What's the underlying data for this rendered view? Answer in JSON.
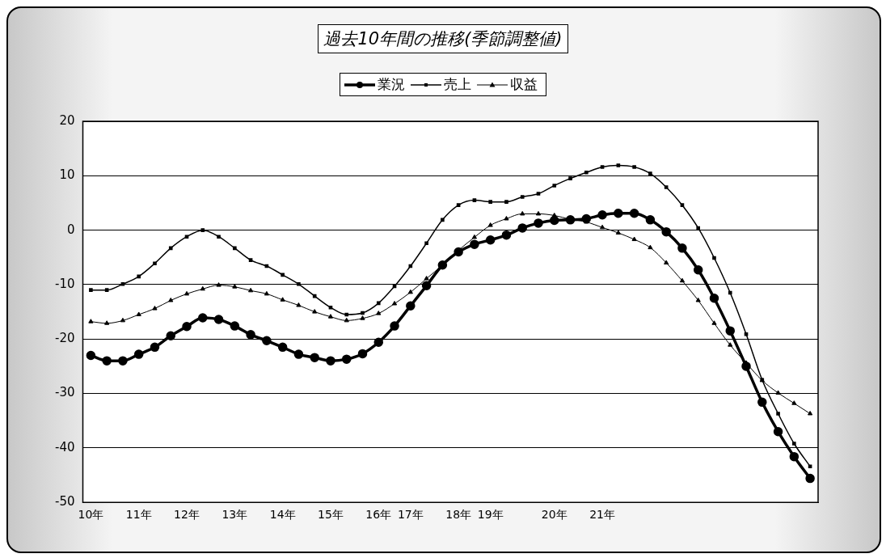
{
  "chart_data": {
    "type": "line",
    "title": "過去10年間の推移(季節調整値)",
    "categories": [
      "10年",
      null,
      null,
      "11年",
      null,
      null,
      "12年",
      null,
      null,
      "13年",
      null,
      null,
      "14年",
      null,
      null,
      "15年",
      null,
      null,
      "16年",
      null,
      "17年",
      null,
      null,
      "18年",
      null,
      "19年",
      null,
      null,
      null,
      "20年",
      null,
      null,
      "21年",
      null,
      null,
      null,
      null,
      null,
      null,
      null,
      null,
      null,
      null,
      null,
      null,
      null
    ],
    "series": [
      {
        "name": "業況",
        "color": "#000000",
        "marker": "circle",
        "values": [
          -23.0,
          -24.0,
          -24.0,
          -22.8,
          -21.5,
          -19.4,
          -17.7,
          -16.1,
          -16.4,
          -17.6,
          -19.2,
          -20.3,
          -21.5,
          -22.8,
          -23.4,
          -24.0,
          -23.7,
          -22.7,
          -20.6,
          -17.6,
          -13.9,
          -10.2,
          -6.4,
          -4.0,
          -2.6,
          -1.8,
          -0.9,
          0.4,
          1.3,
          1.8,
          1.9,
          2.1,
          2.8,
          3.1,
          3.1,
          1.9,
          -0.3,
          -3.3,
          -7.3,
          -12.5,
          -18.5,
          -25.0,
          -31.6,
          -37.0,
          -41.6,
          -45.6
        ]
      },
      {
        "name": "売上",
        "color": "#000000",
        "marker": "square",
        "values": [
          -11.0,
          -11.0,
          -9.9,
          -8.5,
          -6.1,
          -3.3,
          -1.2,
          0.0,
          -1.2,
          -3.3,
          -5.5,
          -6.6,
          -8.2,
          -9.9,
          -12.1,
          -14.2,
          -15.5,
          -15.2,
          -13.4,
          -10.3,
          -6.6,
          -2.4,
          1.9,
          4.6,
          5.5,
          5.2,
          5.2,
          6.1,
          6.7,
          8.2,
          9.5,
          10.6,
          11.6,
          11.9,
          11.6,
          10.4,
          7.9,
          4.6,
          0.4,
          -5.1,
          -11.5,
          -19.1,
          -27.5,
          -33.7,
          -39.2,
          -43.4
        ]
      },
      {
        "name": "収益",
        "color": "#000000",
        "marker": "triangle",
        "values": [
          -16.8,
          -17.1,
          -16.6,
          -15.5,
          -14.4,
          -12.9,
          -11.7,
          -10.8,
          -10.1,
          -10.4,
          -11.1,
          -11.7,
          -12.8,
          -13.8,
          -15.0,
          -15.9,
          -16.6,
          -16.2,
          -15.3,
          -13.5,
          -11.4,
          -8.9,
          -6.4,
          -3.7,
          -1.3,
          0.9,
          2.1,
          3.0,
          3.0,
          2.7,
          2.0,
          1.5,
          0.5,
          -0.5,
          -1.7,
          -3.2,
          -6.0,
          -9.3,
          -12.9,
          -17.1,
          -21.1,
          -24.4,
          -27.6,
          -29.9,
          -31.8,
          -33.7
        ]
      }
    ],
    "ylim": [
      -50,
      20
    ],
    "yticks": [
      -50,
      -40,
      -30,
      -20,
      -10,
      0,
      10,
      20
    ],
    "grid": "y",
    "legend": "top"
  }
}
